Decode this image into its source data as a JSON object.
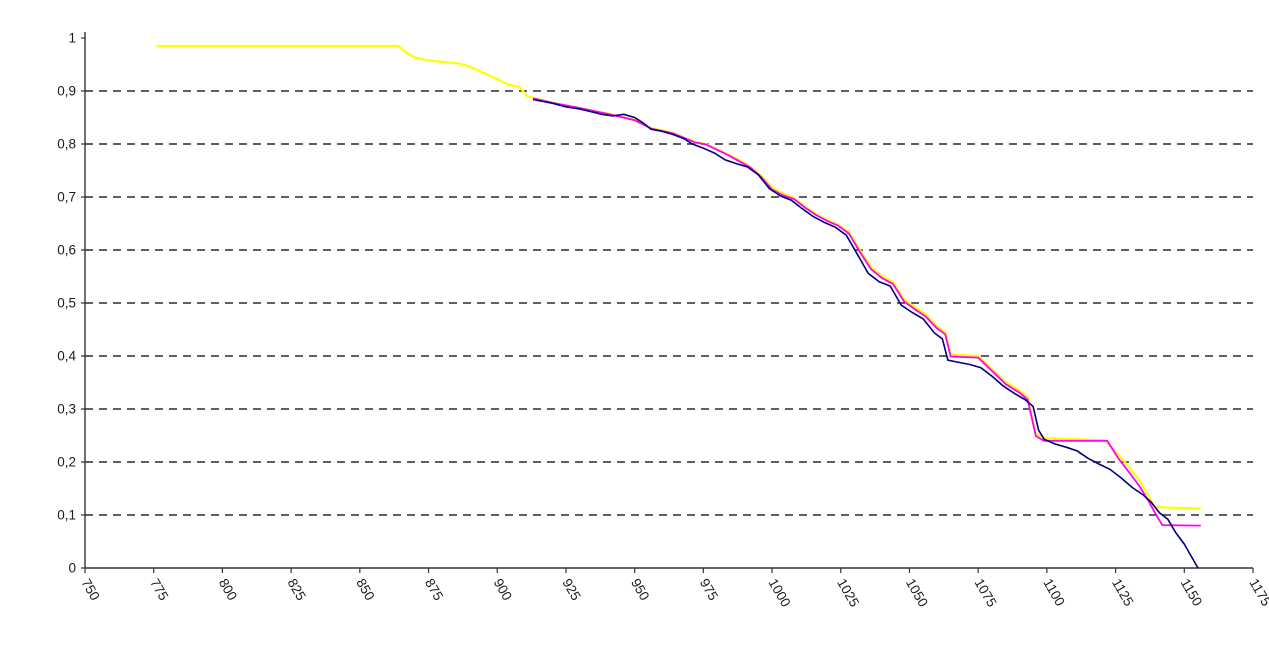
{
  "chart_data": {
    "type": "line",
    "title": "",
    "xlabel": "",
    "ylabel": "",
    "xlim": [
      750,
      1175
    ],
    "ylim": [
      0,
      1
    ],
    "grid": "horizontal-dashed",
    "grid_color": "#2b2b2b",
    "axis_color": "#333333",
    "background": "#ffffff",
    "legend": "none",
    "x_ticks": [
      750,
      775,
      800,
      825,
      850,
      875,
      900,
      925,
      950,
      975,
      1000,
      1025,
      1050,
      1075,
      1100,
      1125,
      1150,
      1175
    ],
    "x_tick_labels": [
      "750",
      "775",
      "800",
      "825",
      "850",
      "875",
      "900",
      "925",
      "950",
      "975",
      "1000",
      "1025",
      "1050",
      "1075",
      "1100",
      "1125",
      "1150",
      "1175"
    ],
    "y_ticks": [
      0,
      0.1,
      0.2,
      0.3,
      0.4,
      0.5,
      0.6,
      0.7,
      0.8,
      0.9,
      1
    ],
    "y_tick_labels": [
      "0",
      "0,1",
      "0,2",
      "0,3",
      "0,4",
      "0,5",
      "0,6",
      "0,7",
      "0,8",
      "0,9",
      "1"
    ],
    "series": [
      {
        "name": "series-yellow",
        "color": "#FFFF00",
        "width": 2.2,
        "points": [
          [
            776,
            0.985
          ],
          [
            864,
            0.985
          ],
          [
            867,
            0.972
          ],
          [
            870,
            0.963
          ],
          [
            875,
            0.958
          ],
          [
            880,
            0.955
          ],
          [
            886,
            0.952
          ],
          [
            890,
            0.946
          ],
          [
            896,
            0.932
          ],
          [
            900,
            0.922
          ],
          [
            904,
            0.912
          ],
          [
            908,
            0.908
          ],
          [
            911,
            0.89
          ],
          [
            915,
            0.885
          ],
          [
            920,
            0.878
          ],
          [
            925,
            0.872
          ],
          [
            930,
            0.868
          ],
          [
            935,
            0.862
          ],
          [
            940,
            0.858
          ],
          [
            945,
            0.852
          ],
          [
            950,
            0.846
          ],
          [
            953,
            0.838
          ],
          [
            956,
            0.83
          ],
          [
            960,
            0.826
          ],
          [
            964,
            0.821
          ],
          [
            968,
            0.812
          ],
          [
            972,
            0.804
          ],
          [
            976,
            0.8
          ],
          [
            980,
            0.79
          ],
          [
            984,
            0.78
          ],
          [
            988,
            0.77
          ],
          [
            992,
            0.757
          ],
          [
            996,
            0.74
          ],
          [
            1000,
            0.718
          ],
          [
            1004,
            0.706
          ],
          [
            1008,
            0.698
          ],
          [
            1012,
            0.682
          ],
          [
            1016,
            0.668
          ],
          [
            1020,
            0.657
          ],
          [
            1024,
            0.648
          ],
          [
            1028,
            0.634
          ],
          [
            1032,
            0.6
          ],
          [
            1036,
            0.568
          ],
          [
            1040,
            0.551
          ],
          [
            1044,
            0.54
          ],
          [
            1048,
            0.507
          ],
          [
            1052,
            0.492
          ],
          [
            1056,
            0.478
          ],
          [
            1060,
            0.456
          ],
          [
            1063,
            0.445
          ],
          [
            1065,
            0.403
          ],
          [
            1075,
            0.4
          ],
          [
            1080,
            0.376
          ],
          [
            1085,
            0.351
          ],
          [
            1090,
            0.335
          ],
          [
            1093,
            0.322
          ],
          [
            1096,
            0.253
          ],
          [
            1100,
            0.245
          ],
          [
            1121,
            0.241
          ],
          [
            1126,
            0.214
          ],
          [
            1130,
            0.19
          ],
          [
            1134,
            0.163
          ],
          [
            1137,
            0.136
          ],
          [
            1139,
            0.115
          ],
          [
            1156,
            0.112
          ]
        ]
      },
      {
        "name": "series-magenta",
        "color": "#FF00FF",
        "width": 1.8,
        "points": [
          [
            913,
            0.886
          ],
          [
            920,
            0.878
          ],
          [
            930,
            0.868
          ],
          [
            940,
            0.857
          ],
          [
            950,
            0.845
          ],
          [
            956,
            0.829
          ],
          [
            964,
            0.82
          ],
          [
            972,
            0.803
          ],
          [
            976,
            0.799
          ],
          [
            984,
            0.779
          ],
          [
            992,
            0.756
          ],
          [
            996,
            0.738
          ],
          [
            1000,
            0.714
          ],
          [
            1004,
            0.703
          ],
          [
            1008,
            0.696
          ],
          [
            1012,
            0.68
          ],
          [
            1016,
            0.666
          ],
          [
            1020,
            0.655
          ],
          [
            1024,
            0.646
          ],
          [
            1028,
            0.631
          ],
          [
            1032,
            0.596
          ],
          [
            1036,
            0.564
          ],
          [
            1040,
            0.547
          ],
          [
            1044,
            0.536
          ],
          [
            1048,
            0.503
          ],
          [
            1052,
            0.488
          ],
          [
            1056,
            0.474
          ],
          [
            1060,
            0.452
          ],
          [
            1063,
            0.441
          ],
          [
            1065,
            0.399
          ],
          [
            1075,
            0.397
          ],
          [
            1080,
            0.372
          ],
          [
            1085,
            0.347
          ],
          [
            1090,
            0.331
          ],
          [
            1093,
            0.318
          ],
          [
            1096,
            0.249
          ],
          [
            1099,
            0.24
          ],
          [
            1122,
            0.24
          ],
          [
            1126,
            0.207
          ],
          [
            1130,
            0.18
          ],
          [
            1134,
            0.152
          ],
          [
            1137,
            0.126
          ],
          [
            1140,
            0.098
          ],
          [
            1142,
            0.081
          ],
          [
            1156,
            0.08
          ]
        ]
      },
      {
        "name": "series-navy",
        "color": "#000080",
        "width": 1.6,
        "points": [
          [
            913,
            0.884
          ],
          [
            920,
            0.877
          ],
          [
            925,
            0.87
          ],
          [
            930,
            0.866
          ],
          [
            935,
            0.86
          ],
          [
            938,
            0.856
          ],
          [
            942,
            0.853
          ],
          [
            946,
            0.856
          ],
          [
            950,
            0.85
          ],
          [
            953,
            0.84
          ],
          [
            956,
            0.828
          ],
          [
            960,
            0.824
          ],
          [
            964,
            0.818
          ],
          [
            968,
            0.81
          ],
          [
            971,
            0.8
          ],
          [
            975,
            0.792
          ],
          [
            979,
            0.783
          ],
          [
            983,
            0.77
          ],
          [
            987,
            0.763
          ],
          [
            991,
            0.757
          ],
          [
            995,
            0.742
          ],
          [
            999,
            0.716
          ],
          [
            1003,
            0.702
          ],
          [
            1007,
            0.694
          ],
          [
            1011,
            0.678
          ],
          [
            1015,
            0.663
          ],
          [
            1019,
            0.652
          ],
          [
            1023,
            0.643
          ],
          [
            1027,
            0.628
          ],
          [
            1031,
            0.592
          ],
          [
            1035,
            0.556
          ],
          [
            1039,
            0.54
          ],
          [
            1043,
            0.532
          ],
          [
            1047,
            0.496
          ],
          [
            1051,
            0.482
          ],
          [
            1055,
            0.47
          ],
          [
            1059,
            0.444
          ],
          [
            1062,
            0.432
          ],
          [
            1064,
            0.392
          ],
          [
            1068,
            0.388
          ],
          [
            1072,
            0.384
          ],
          [
            1076,
            0.378
          ],
          [
            1080,
            0.362
          ],
          [
            1084,
            0.344
          ],
          [
            1088,
            0.33
          ],
          [
            1092,
            0.318
          ],
          [
            1095,
            0.305
          ],
          [
            1097,
            0.26
          ],
          [
            1099,
            0.243
          ],
          [
            1103,
            0.234
          ],
          [
            1107,
            0.228
          ],
          [
            1111,
            0.221
          ],
          [
            1115,
            0.207
          ],
          [
            1119,
            0.196
          ],
          [
            1123,
            0.186
          ],
          [
            1127,
            0.17
          ],
          [
            1131,
            0.152
          ],
          [
            1135,
            0.138
          ],
          [
            1138,
            0.124
          ],
          [
            1141,
            0.104
          ],
          [
            1144,
            0.092
          ],
          [
            1147,
            0.066
          ],
          [
            1150,
            0.045
          ],
          [
            1153,
            0.018
          ],
          [
            1155,
            0.0
          ]
        ]
      }
    ]
  }
}
